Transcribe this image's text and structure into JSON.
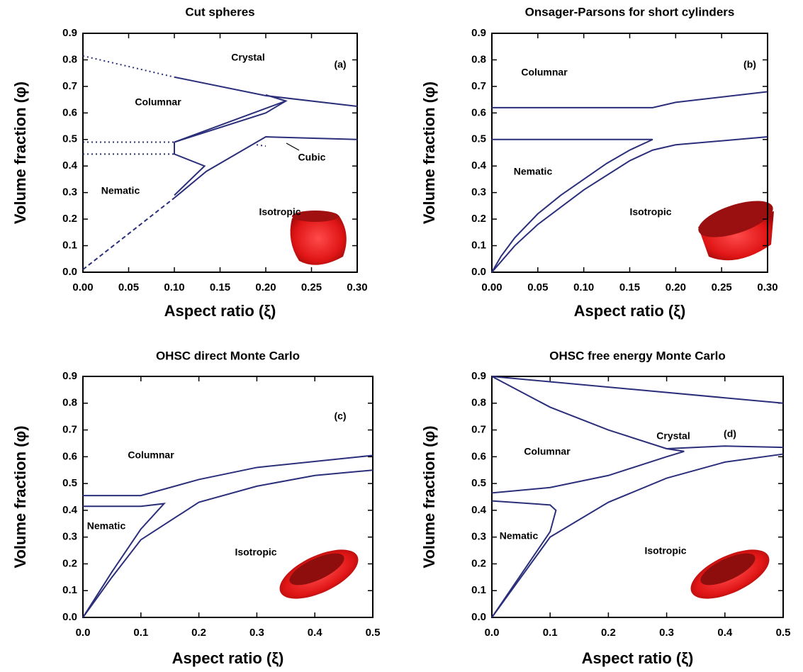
{
  "chart_data": [
    {
      "type": "line",
      "title": "Cut spheres",
      "xlabel": "Aspect ratio (ξ)",
      "ylabel": "Volume fraction (φ)",
      "xlim": [
        0,
        0.3
      ],
      "ylim": [
        0,
        0.9
      ],
      "xticks": [
        {
          "value": 0,
          "label": "0.00"
        },
        0.05,
        {
          "value": 0.1,
          "label": "0.10"
        },
        0.15,
        {
          "value": 0.2,
          "label": "0.20"
        },
        0.25,
        {
          "value": 0.3,
          "label": "0.30"
        }
      ],
      "yticks": [
        {
          "value": 0,
          "label": "0.0"
        },
        0.1,
        0.2,
        0.3,
        0.4,
        0.5,
        0.6,
        0.7,
        0.8,
        0.9
      ],
      "annotations": [
        "Crystal",
        "(a)",
        "Columnar",
        "Nematic",
        "Isotropic",
        "Cubic"
      ],
      "series": [
        {
          "color": "#2b2f7a",
          "style": "dotted",
          "x": [
            0,
            0.1
          ],
          "values": [
            0.815,
            0.735
          ]
        },
        {
          "color": "#2b2f7a",
          "style": "dotted",
          "x": [
            0,
            0.1
          ],
          "values": [
            0.49,
            0.49
          ]
        },
        {
          "color": "#2b2f7a",
          "style": "dotted",
          "x": [
            0,
            0.1
          ],
          "values": [
            0.445,
            0.445
          ]
        },
        {
          "color": "#2b2f7a",
          "style": "dashed",
          "x": [
            0,
            0.1
          ],
          "values": [
            0.01,
            0.28
          ]
        },
        {
          "color": "#2b2f7a",
          "style": "dotted",
          "x": [
            0.19,
            0.2
          ],
          "values": [
            0.48,
            0.475
          ]
        },
        {
          "color": "#2b2f7a",
          "style": "solid",
          "x": [
            0.1,
            0.2,
            0.3
          ],
          "values": [
            0.735,
            0.665,
            0.625
          ]
        },
        {
          "color": "#2b2f7a",
          "style": "solid",
          "x": [
            0.1,
            0.2,
            0.222,
            0.2
          ],
          "values": [
            0.49,
            0.6,
            0.645,
            0.668
          ]
        },
        {
          "color": "#2b2f7a",
          "style": "solid",
          "x": [
            0.1,
            0.222
          ],
          "values": [
            0.49,
            0.645
          ]
        },
        {
          "color": "#2b2f7a",
          "style": "solid",
          "x": [
            0.1,
            0.1,
            0.133,
            0.1
          ],
          "values": [
            0.49,
            0.445,
            0.4,
            0.29
          ]
        },
        {
          "color": "#2b2f7a",
          "style": "solid",
          "x": [
            0.1,
            0.135,
            0.2,
            0.3
          ],
          "values": [
            0.28,
            0.38,
            0.51,
            0.5
          ]
        }
      ]
    },
    {
      "type": "line",
      "title": "Onsager-Parsons for short cylinders",
      "xlabel": "Aspect ratio (ξ)",
      "ylabel": "Volume fraction (φ)",
      "xlim": [
        0,
        0.3
      ],
      "ylim": [
        0,
        0.9
      ],
      "xticks": [
        {
          "value": 0,
          "label": "0.00"
        },
        0.05,
        {
          "value": 0.1,
          "label": "0.10"
        },
        0.15,
        {
          "value": 0.2,
          "label": "0.20"
        },
        0.25,
        {
          "value": 0.3,
          "label": "0.30"
        }
      ],
      "yticks": [
        {
          "value": 0,
          "label": "0.0"
        },
        0.1,
        0.2,
        0.3,
        0.4,
        0.5,
        0.6,
        0.7,
        0.8,
        0.9
      ],
      "annotations": [
        "Columnar",
        "(b)",
        "Nematic",
        "Isotropic"
      ],
      "series": [
        {
          "color": "#2b2f7a",
          "style": "solid",
          "x": [
            0,
            0.175,
            0.2,
            0.3
          ],
          "values": [
            0.62,
            0.62,
            0.64,
            0.68
          ]
        },
        {
          "color": "#2b2f7a",
          "style": "solid",
          "x": [
            0,
            0.175,
            0.15,
            0.125,
            0.075,
            0.05,
            0.025,
            0.01,
            0
          ],
          "values": [
            0.5,
            0.5,
            0.46,
            0.41,
            0.29,
            0.22,
            0.13,
            0.06,
            0
          ]
        },
        {
          "color": "#2b2f7a",
          "style": "solid",
          "x": [
            0,
            0.025,
            0.05,
            0.1,
            0.15,
            0.175,
            0.2,
            0.3
          ],
          "values": [
            0,
            0.1,
            0.18,
            0.31,
            0.42,
            0.46,
            0.48,
            0.51
          ]
        }
      ]
    },
    {
      "type": "line",
      "title": "OHSC direct Monte Carlo",
      "xlabel": "Aspect ratio (ξ)",
      "ylabel": "Volume fraction (φ)",
      "xlim": [
        0,
        0.5
      ],
      "ylim": [
        0,
        0.9
      ],
      "xticks": [
        {
          "value": 0,
          "label": "0.0"
        },
        0.1,
        0.2,
        0.3,
        0.4,
        0.5
      ],
      "yticks": [
        {
          "value": 0,
          "label": "0.0"
        },
        0.1,
        0.2,
        0.3,
        0.4,
        0.5,
        0.6,
        0.7,
        0.8,
        0.9
      ],
      "annotations": [
        "(c)",
        "Columnar",
        "Nematic",
        "Isotropic"
      ],
      "series": [
        {
          "color": "#2b2f7a",
          "style": "solid",
          "x": [
            0,
            0.1,
            0.2,
            0.3,
            0.5
          ],
          "values": [
            0.455,
            0.455,
            0.515,
            0.56,
            0.605
          ]
        },
        {
          "color": "#2b2f7a",
          "style": "solid",
          "x": [
            0,
            0.1,
            0.14,
            0.1,
            0.05,
            0
          ],
          "values": [
            0.415,
            0.415,
            0.425,
            0.33,
            0.17,
            0
          ]
        },
        {
          "color": "#2b2f7a",
          "style": "solid",
          "x": [
            0,
            0.05,
            0.1,
            0.2,
            0.3,
            0.4,
            0.5
          ],
          "values": [
            0,
            0.15,
            0.29,
            0.43,
            0.49,
            0.53,
            0.55
          ]
        }
      ]
    },
    {
      "type": "line",
      "title": "OHSC free energy Monte Carlo",
      "xlabel": "Aspect ratio (ξ)",
      "ylabel": "Volume fraction (φ)",
      "xlim": [
        0,
        0.5
      ],
      "ylim": [
        0,
        0.9
      ],
      "xticks": [
        {
          "value": 0,
          "label": "0.0"
        },
        0.1,
        0.2,
        0.3,
        0.4,
        0.5
      ],
      "yticks": [
        {
          "value": 0,
          "label": "0.0"
        },
        0.1,
        0.2,
        0.3,
        0.4,
        0.5,
        0.6,
        0.7,
        0.8,
        0.9
      ],
      "annotations": [
        "Crystal",
        "(d)",
        "Columnar",
        "Nematic",
        "Isotropic"
      ],
      "series": [
        {
          "color": "#2b2f7a",
          "style": "solid",
          "x": [
            0,
            0.5
          ],
          "values": [
            0.9,
            0.8
          ]
        },
        {
          "color": "#2b2f7a",
          "style": "solid",
          "x": [
            0,
            0.1,
            0.2,
            0.3,
            0.33,
            0.3,
            0.2,
            0.1,
            0
          ],
          "values": [
            0.9,
            0.785,
            0.7,
            0.63,
            0.62,
            0.6,
            0.53,
            0.485,
            0.465
          ]
        },
        {
          "color": "#2b2f7a",
          "style": "solid",
          "x": [
            0.3,
            0.4,
            0.5
          ],
          "values": [
            0.63,
            0.64,
            0.635
          ]
        },
        {
          "color": "#2b2f7a",
          "style": "solid",
          "x": [
            0,
            0.1,
            0.11,
            0.1,
            0.05,
            0
          ],
          "values": [
            0.435,
            0.42,
            0.4,
            0.32,
            0.16,
            0
          ]
        },
        {
          "color": "#2b2f7a",
          "style": "solid",
          "x": [
            0,
            0.05,
            0.1,
            0.2,
            0.3,
            0.4,
            0.5
          ],
          "values": [
            0,
            0.15,
            0.3,
            0.43,
            0.52,
            0.58,
            0.61
          ]
        }
      ]
    }
  ]
}
